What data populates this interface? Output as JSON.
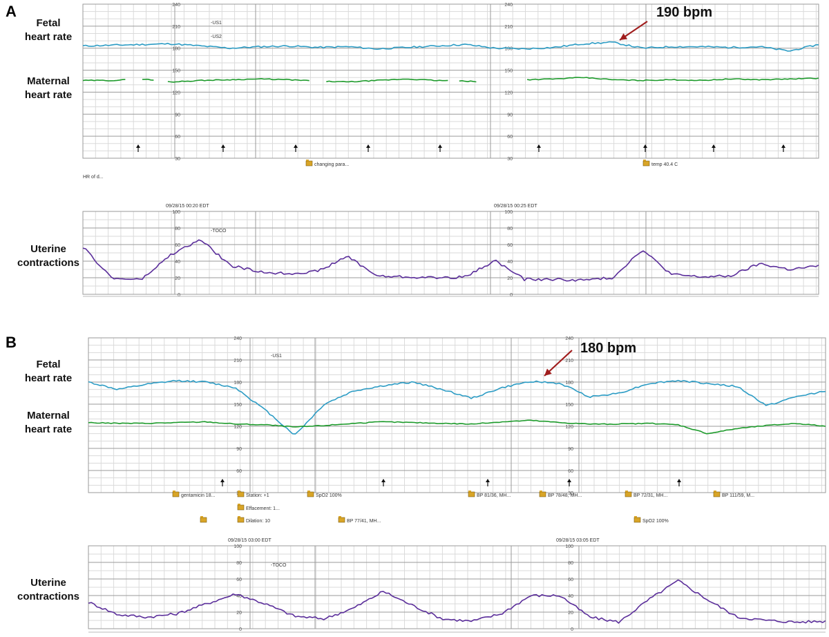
{
  "colors": {
    "fetal": "#2a9bc4",
    "maternal": "#1c9a2a",
    "toco": "#5a2d9a",
    "arrow": "#a01d1d"
  },
  "icons": [
    "up-arrow-icon",
    "folder-note-icon"
  ],
  "panels": [
    {
      "letter": "A",
      "labels": {
        "fetal_1": "Fetal",
        "fetal_2": "heart rate",
        "maternal_1": "Maternal",
        "maternal_2": "heart rate",
        "uterine_1": "Uterine",
        "uterine_2": "contractions"
      },
      "hr_ticks": [
        "240",
        "210",
        "180",
        "150",
        "120",
        "90",
        "60",
        "30"
      ],
      "hr_tick_values": [
        240,
        210,
        180,
        150,
        120,
        90,
        60,
        30
      ],
      "toco_ticks": [
        "100",
        "80",
        "60",
        "40",
        "20",
        "0"
      ],
      "toco_tick_values": [
        100,
        80,
        60,
        40,
        20,
        0
      ],
      "channel_labels": [
        "-US1",
        "-US2"
      ],
      "toco_label": "-TOCO",
      "timestamps": [
        "09/28/15 00:20 EDT",
        "09/28/15 00:25 EDT"
      ],
      "hr_note": "HR of d...",
      "annotation": "190 bpm",
      "notes": [
        "changing para...",
        "temp 40.4 C"
      ]
    },
    {
      "letter": "B",
      "labels": {
        "fetal_1": "Fetal",
        "fetal_2": "heart rate",
        "maternal_1": "Maternal",
        "maternal_2": "heart rate",
        "uterine_1": "Uterine",
        "uterine_2": "contractions"
      },
      "hr_ticks": [
        "240",
        "210",
        "180",
        "150",
        "120",
        "90",
        "60",
        "30"
      ],
      "hr_tick_values": [
        240,
        210,
        180,
        150,
        120,
        90,
        60,
        30
      ],
      "toco_ticks": [
        "100",
        "80",
        "60",
        "40",
        "20",
        "0"
      ],
      "toco_tick_values": [
        100,
        80,
        60,
        40,
        20,
        0
      ],
      "channel_labels": [
        "-US1"
      ],
      "toco_label": "-TOCO",
      "timestamps": [
        "09/28/15 03:00 EDT",
        "09/28/15 03:05 EDT"
      ],
      "annotation": "180 bpm",
      "notes": [
        "gentamicin 18...",
        "Station: +1",
        "SpO2  100%",
        "BP  81/36, MH...",
        "BP  78/48, MH...",
        "BP  72/31, MH...",
        "BP  111/59, M...",
        "Effacement: 1...",
        "",
        "Dilation: 10",
        "BP  77/41, MH...",
        "SpO2  100%"
      ]
    }
  ],
  "chart_data": [
    {
      "type": "line",
      "panel": "A",
      "ylabel": "Fetal heart rate / Maternal heart rate",
      "ylim": [
        30,
        240
      ],
      "x": [
        0,
        0.04,
        0.08,
        0.12,
        0.16,
        0.2,
        0.24,
        0.28,
        0.32,
        0.36,
        0.4,
        0.44,
        0.48,
        0.52,
        0.56,
        0.6,
        0.64,
        0.68,
        0.72,
        0.76,
        0.8,
        0.84,
        0.88,
        0.92,
        0.96,
        1.0
      ],
      "series": [
        {
          "name": "Fetal heart rate",
          "values": [
            183,
            184,
            185,
            186,
            183,
            180,
            182,
            183,
            181,
            182,
            179,
            181,
            183,
            185,
            180,
            179,
            181,
            186,
            188,
            180,
            182,
            182,
            181,
            182,
            176,
            185
          ]
        },
        {
          "name": "Maternal heart rate",
          "values": [
            136,
            136,
            138,
            134,
            136,
            137,
            138,
            137,
            135,
            134,
            136,
            138,
            136,
            135,
            133,
            137,
            138,
            140,
            137,
            136,
            137,
            136,
            138,
            137,
            138,
            139
          ]
        }
      ]
    },
    {
      "type": "line",
      "panel": "A",
      "ylabel": "Uterine contractions",
      "ylim": [
        0,
        100
      ],
      "x": [
        0,
        0.04,
        0.08,
        0.12,
        0.16,
        0.2,
        0.24,
        0.28,
        0.32,
        0.36,
        0.4,
        0.44,
        0.48,
        0.52,
        0.56,
        0.6,
        0.64,
        0.68,
        0.72,
        0.76,
        0.8,
        0.84,
        0.88,
        0.92,
        0.96,
        1.0
      ],
      "series": [
        {
          "name": "TOCO",
          "values": [
            57,
            19,
            18,
            48,
            66,
            35,
            27,
            25,
            28,
            46,
            22,
            21,
            20,
            21,
            41,
            18,
            18,
            17,
            20,
            54,
            24,
            21,
            22,
            37,
            30,
            34
          ]
        }
      ]
    },
    {
      "type": "line",
      "panel": "B",
      "ylabel": "Fetal heart rate / Maternal heart rate",
      "ylim": [
        30,
        240
      ],
      "x": [
        0,
        0.04,
        0.08,
        0.12,
        0.16,
        0.2,
        0.24,
        0.28,
        0.32,
        0.36,
        0.4,
        0.44,
        0.48,
        0.52,
        0.56,
        0.6,
        0.64,
        0.68,
        0.72,
        0.76,
        0.8,
        0.84,
        0.88,
        0.92,
        0.96,
        1.0
      ],
      "series": [
        {
          "name": "Fetal heart rate",
          "values": [
            180,
            170,
            177,
            182,
            180,
            172,
            142,
            108,
            150,
            168,
            175,
            180,
            170,
            158,
            172,
            181,
            178,
            160,
            165,
            178,
            182,
            178,
            174,
            148,
            160,
            168
          ]
        },
        {
          "name": "Maternal heart rate",
          "values": [
            125,
            124,
            124,
            125,
            126,
            123,
            122,
            119,
            121,
            124,
            126,
            125,
            124,
            123,
            126,
            128,
            125,
            123,
            123,
            124,
            122,
            110,
            117,
            121,
            124,
            120
          ]
        }
      ]
    },
    {
      "type": "line",
      "panel": "B",
      "ylabel": "Uterine contractions",
      "ylim": [
        0,
        100
      ],
      "x": [
        0,
        0.04,
        0.08,
        0.12,
        0.16,
        0.2,
        0.24,
        0.28,
        0.32,
        0.36,
        0.4,
        0.44,
        0.48,
        0.52,
        0.56,
        0.6,
        0.64,
        0.68,
        0.72,
        0.76,
        0.8,
        0.84,
        0.88,
        0.92,
        0.96,
        1.0
      ],
      "series": [
        {
          "name": "TOCO",
          "values": [
            32,
            17,
            14,
            18,
            30,
            42,
            30,
            15,
            12,
            25,
            45,
            28,
            12,
            9,
            18,
            40,
            40,
            14,
            8,
            35,
            58,
            35,
            14,
            10,
            8,
            9
          ]
        }
      ]
    }
  ]
}
